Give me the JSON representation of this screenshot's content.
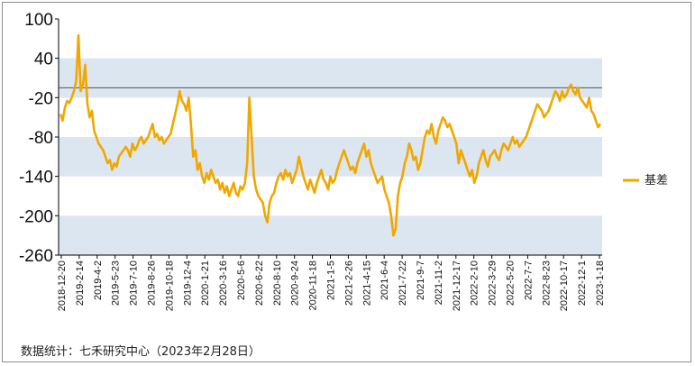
{
  "chart_data": {
    "type": "line",
    "title": "",
    "xlabel": "",
    "ylabel": "",
    "ylim": [
      -260,
      100
    ],
    "y_ticks": [
      "100",
      "40",
      "-20",
      "-80",
      "-140",
      "-200",
      "-260"
    ],
    "y_tick_values": [
      100,
      40,
      -20,
      -80,
      -140,
      -200,
      -260
    ],
    "reference_line": -5,
    "grid": "alternating horizontal bands",
    "band_color": "#dce6f1",
    "line_color": "#f0a800",
    "legend_position": "right",
    "x_tick_labels": [
      "2018-12-20",
      "2019-2-14",
      "2019-4-2",
      "2019-5-23",
      "2019-7-10",
      "2019-8-26",
      "2019-10-18",
      "2019-12-4",
      "2020-1-21",
      "2020-3-16",
      "2020-5-6",
      "2020-6-22",
      "2020-8-10",
      "2020-9-24",
      "2020-11-18",
      "2021-1-5",
      "2021-2-26",
      "2021-4-15",
      "2021-6-4",
      "2021-7-22",
      "2021-9-7",
      "2021-11-2",
      "2021-12-17",
      "2022-2-10",
      "2022-3-29",
      "2022-5-20",
      "2022-7-7",
      "2022-8-23",
      "2022-10-17",
      "2022-12-1",
      "2023-1-18"
    ],
    "series": [
      {
        "name": "基差",
        "values": [
          -45,
          -55,
          -35,
          -25,
          -28,
          -20,
          -10,
          5,
          75,
          -10,
          0,
          30,
          -30,
          -50,
          -40,
          -70,
          -80,
          -90,
          -95,
          -100,
          -110,
          -120,
          -115,
          -130,
          -120,
          -125,
          -110,
          -105,
          -100,
          -95,
          -100,
          -110,
          -90,
          -100,
          -95,
          -85,
          -80,
          -90,
          -85,
          -80,
          -70,
          -60,
          -80,
          -75,
          -85,
          -80,
          -90,
          -85,
          -80,
          -75,
          -60,
          -45,
          -30,
          -10,
          -25,
          -30,
          -40,
          -20,
          -60,
          -110,
          -100,
          -130,
          -120,
          -140,
          -150,
          -135,
          -145,
          -130,
          -140,
          -150,
          -145,
          -160,
          -150,
          -165,
          -155,
          -170,
          -160,
          -150,
          -165,
          -170,
          -155,
          -160,
          -150,
          -120,
          -20,
          -80,
          -140,
          -160,
          -170,
          -175,
          -180,
          -200,
          -210,
          -180,
          -170,
          -165,
          -150,
          -140,
          -135,
          -145,
          -130,
          -140,
          -135,
          -150,
          -140,
          -130,
          -110,
          -125,
          -140,
          -150,
          -160,
          -145,
          -155,
          -165,
          -150,
          -140,
          -130,
          -145,
          -150,
          -160,
          -140,
          -150,
          -145,
          -130,
          -120,
          -110,
          -100,
          -110,
          -120,
          -130,
          -125,
          -135,
          -120,
          -110,
          -100,
          -90,
          -110,
          -100,
          -120,
          -130,
          -140,
          -150,
          -145,
          -140,
          -160,
          -170,
          -180,
          -200,
          -230,
          -220,
          -170,
          -150,
          -140,
          -120,
          -110,
          -90,
          -100,
          -115,
          -110,
          -130,
          -120,
          -100,
          -80,
          -70,
          -75,
          -60,
          -80,
          -90,
          -70,
          -60,
          -50,
          -55,
          -65,
          -60,
          -70,
          -80,
          -90,
          -120,
          -100,
          -110,
          -120,
          -130,
          -140,
          -130,
          -150,
          -140,
          -120,
          -110,
          -100,
          -115,
          -125,
          -110,
          -105,
          -100,
          -110,
          -115,
          -100,
          -90,
          -95,
          -100,
          -90,
          -80,
          -90,
          -85,
          -95,
          -90,
          -85,
          -80,
          -70,
          -60,
          -50,
          -40,
          -30,
          -35,
          -40,
          -50,
          -45,
          -40,
          -30,
          -20,
          -10,
          -15,
          -25,
          -10,
          -20,
          -15,
          -5,
          0,
          -10,
          -15,
          -5,
          -20,
          -25,
          -30,
          -35,
          -20,
          -40,
          -45,
          -55,
          -65,
          -60
        ]
      }
    ]
  },
  "source": "数据统计：七禾研究中心（2023年2月28日）"
}
